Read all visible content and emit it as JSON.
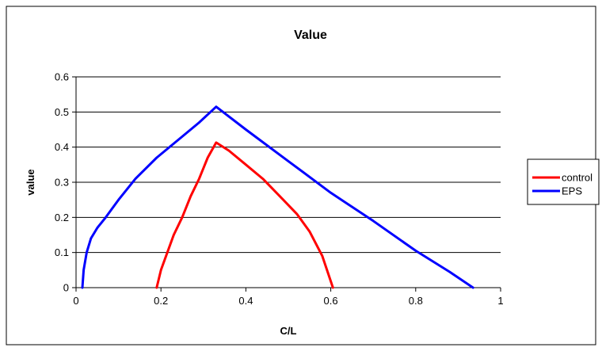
{
  "chart_data": {
    "type": "line",
    "title": "Value",
    "xlabel": "C/L",
    "ylabel": "value",
    "xlim": [
      0,
      1
    ],
    "ylim": [
      0,
      0.6
    ],
    "xticks": [
      "0",
      "0.2",
      "0.4",
      "0.6",
      "0.8",
      "1"
    ],
    "yticks": [
      "0",
      "0.1",
      "0.2",
      "0.3",
      "0.4",
      "0.5",
      "0.6"
    ],
    "grid": "horizontal",
    "legend_position": "right",
    "series": [
      {
        "name": "control",
        "color": "#ff0000",
        "points": [
          [
            0.19,
            0.0
          ],
          [
            0.2,
            0.05
          ],
          [
            0.215,
            0.1
          ],
          [
            0.23,
            0.15
          ],
          [
            0.25,
            0.2
          ],
          [
            0.27,
            0.26
          ],
          [
            0.29,
            0.31
          ],
          [
            0.31,
            0.37
          ],
          [
            0.33,
            0.413
          ],
          [
            0.36,
            0.39
          ],
          [
            0.4,
            0.35
          ],
          [
            0.44,
            0.31
          ],
          [
            0.48,
            0.26
          ],
          [
            0.52,
            0.21
          ],
          [
            0.55,
            0.16
          ],
          [
            0.58,
            0.09
          ],
          [
            0.605,
            0.0
          ]
        ]
      },
      {
        "name": "EPS",
        "color": "#0000ff",
        "points": [
          [
            0.015,
            0.0
          ],
          [
            0.018,
            0.05
          ],
          [
            0.025,
            0.1
          ],
          [
            0.035,
            0.14
          ],
          [
            0.05,
            0.17
          ],
          [
            0.07,
            0.2
          ],
          [
            0.1,
            0.25
          ],
          [
            0.14,
            0.31
          ],
          [
            0.19,
            0.37
          ],
          [
            0.25,
            0.43
          ],
          [
            0.29,
            0.47
          ],
          [
            0.33,
            0.515
          ],
          [
            0.4,
            0.45
          ],
          [
            0.5,
            0.36
          ],
          [
            0.6,
            0.27
          ],
          [
            0.7,
            0.19
          ],
          [
            0.8,
            0.105
          ],
          [
            0.88,
            0.045
          ],
          [
            0.935,
            0.0
          ]
        ]
      }
    ]
  }
}
